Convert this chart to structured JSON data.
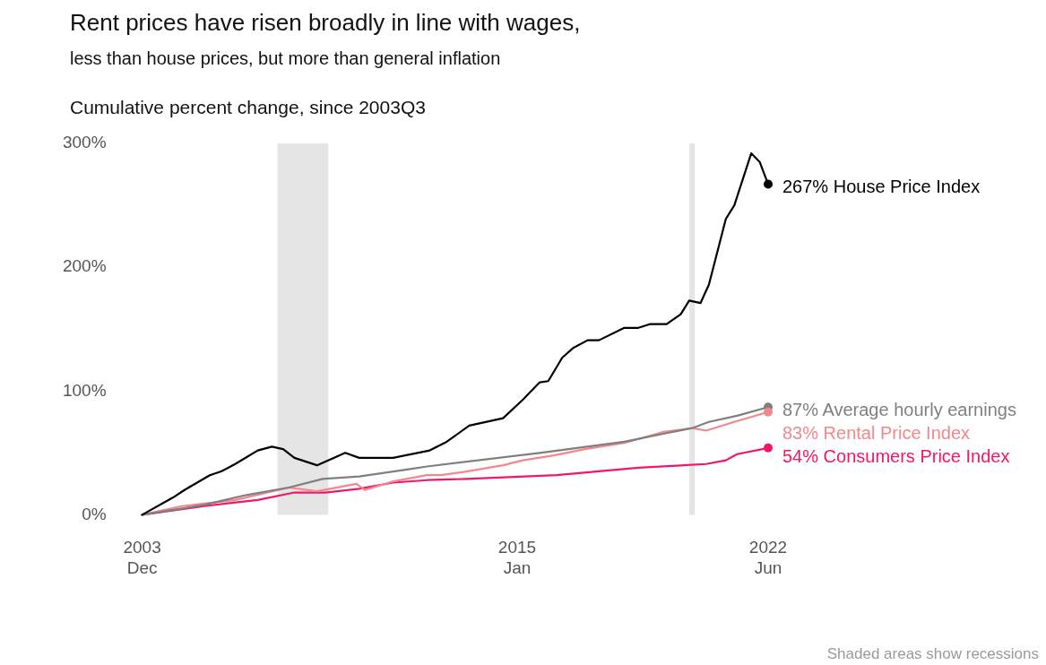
{
  "chart_data": {
    "type": "line",
    "title": "Rent prices have risen broadly in line with wages,",
    "subtitle": "less than house prices, but more than general inflation",
    "ylabel": "Cumulative percent change, since 2003Q3",
    "xlim": [
      "2003-12",
      "2022-06"
    ],
    "xticks": [
      {
        "value": "2003-12",
        "label": "2003\nDec"
      },
      {
        "value": "2015-01",
        "label": "2015\nJan"
      },
      {
        "value": "2022-06",
        "label": "2022\nJun"
      }
    ],
    "ylim": [
      0,
      300
    ],
    "yticks": [
      {
        "value": 0,
        "label": "0%"
      },
      {
        "value": 100,
        "label": "100%"
      },
      {
        "value": 200,
        "label": "200%"
      },
      {
        "value": 300,
        "label": "300%"
      }
    ],
    "grid": false,
    "legend": false,
    "marker": "none",
    "line_style": "solid",
    "series": [
      {
        "color": "#000000",
        "x": [
          "2003-12",
          "2004-11",
          "2005-03",
          "2005-12",
          "2006-04",
          "2006-09",
          "2007-05",
          "2007-10",
          "2008-02",
          "2008-06",
          "2009-02",
          "2009-12",
          "2010-05",
          "2011-05",
          "2012-06",
          "2012-12",
          "2013-08",
          "2014-08",
          "2015-03",
          "2015-09",
          "2015-12",
          "2016-05",
          "2016-09",
          "2017-02",
          "2017-06",
          "2018-03",
          "2018-08",
          "2018-12",
          "2019-06",
          "2019-11",
          "2020-02",
          "2020-06",
          "2020-09",
          "2021-03",
          "2021-06",
          "2021-12",
          "2022-03",
          "2022-06"
        ],
        "values": [
          0,
          14,
          20,
          32,
          35,
          41,
          52,
          55,
          53,
          46,
          40,
          50,
          46,
          46,
          52,
          59,
          72,
          78,
          93,
          107,
          108,
          127,
          135,
          141,
          141,
          151,
          151,
          154,
          154,
          162,
          173,
          171,
          186,
          239,
          250,
          292,
          285,
          267
        ]
      },
      {
        "color": "#7f7f7f",
        "x": [
          "2003-12",
          "2005-10",
          "2007-01",
          "2008-04",
          "2009-04",
          "2010-05",
          "2011-11",
          "2012-05",
          "2015-09",
          "2018-03",
          "2019-06",
          "2020-03",
          "2020-09",
          "2021-07",
          "2022-06"
        ],
        "values": [
          0,
          8,
          16,
          22,
          29,
          31,
          37,
          39,
          50,
          59,
          66,
          70,
          75,
          80,
          87
        ]
      },
      {
        "color": "#f4868c",
        "x": [
          "2003-12",
          "2005-02",
          "2006-09",
          "2008-04",
          "2009-02",
          "2010-04",
          "2010-07",
          "2011-05",
          "2012-05",
          "2012-10",
          "2013-07",
          "2014-08",
          "2015-03",
          "2016-02",
          "2017-01",
          "2018-03",
          "2019-05",
          "2020-03",
          "2020-08",
          "2021-06",
          "2022-06"
        ],
        "values": [
          0,
          7,
          12,
          22,
          19,
          25,
          20,
          27,
          32,
          32,
          35,
          40,
          44,
          48,
          53,
          58,
          67,
          70,
          68,
          75,
          83
        ]
      },
      {
        "color": "#f0166a",
        "x": [
          "2003-12",
          "2005-10",
          "2007-05",
          "2008-06",
          "2009-05",
          "2010-05",
          "2011-05",
          "2012-05",
          "2013-07",
          "2016-03",
          "2018-08",
          "2020-08",
          "2021-03",
          "2021-07",
          "2022-06"
        ],
        "values": [
          0,
          7,
          12,
          18,
          18,
          21,
          26,
          28,
          29,
          32,
          38,
          41,
          44,
          49,
          54
        ]
      }
    ],
    "bands": [
      {
        "axis": "x",
        "from": "2007-12",
        "to": "2009-06",
        "color": "#e5e5e5"
      },
      {
        "axis": "x",
        "from": "2020-02",
        "to": "2020-04",
        "color": "#e5e5e5"
      }
    ],
    "annotations": [
      {
        "text": "267% House Price Index",
        "x": "2022-06",
        "y": 267
      },
      {
        "text": "87% Average hourly earnings",
        "x": "2022-06",
        "y": 87
      },
      {
        "text": "83% Rental Price Index",
        "x": "2022-06",
        "y": 83
      },
      {
        "text": "54% Consumers Price Index",
        "x": "2022-06",
        "y": 54
      },
      "Shaded areas show recessions"
    ]
  }
}
